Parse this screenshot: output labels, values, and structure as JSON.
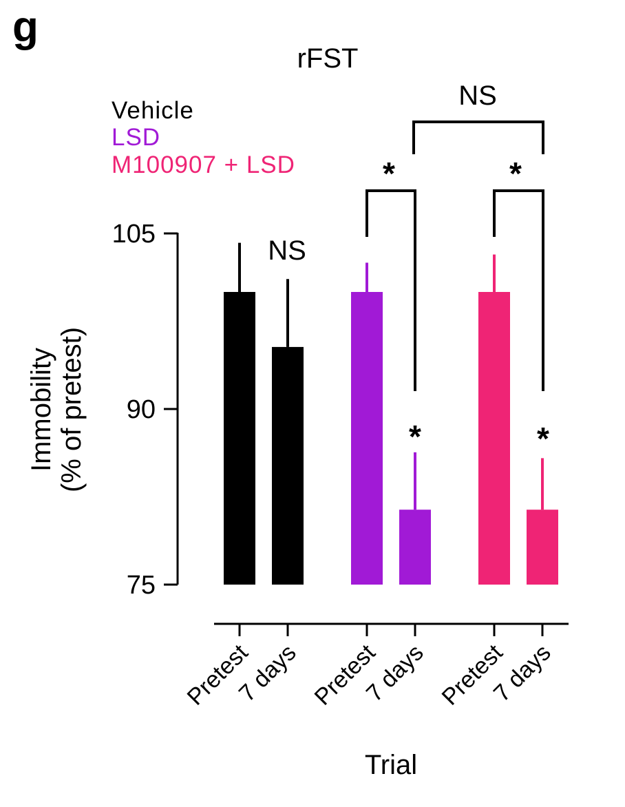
{
  "panel_label": "g",
  "chart_data": {
    "type": "bar",
    "title": "rFST",
    "ylabel": "Immobility\n(% of pretest)",
    "ylabel_lines": [
      "Immobility",
      "(% of pretest)"
    ],
    "xlabel": "Trial",
    "ylim": [
      75,
      105
    ],
    "yticks": [
      "75",
      "90",
      "105"
    ],
    "categories": [
      "Pretest",
      "7 days"
    ],
    "legend_placement": "top-left",
    "series": [
      {
        "name": "Vehicle",
        "color": "#000000",
        "values": [
          100,
          95.3
        ],
        "errors": [
          4.2,
          5.8
        ]
      },
      {
        "name": "LSD",
        "color": "#a11ad6",
        "values": [
          100,
          81.4
        ],
        "errors": [
          2.5,
          4.9
        ]
      },
      {
        "name": "M100907 + LSD",
        "color": "#ef2475",
        "values": [
          100,
          81.4
        ],
        "errors": [
          3.2,
          4.4
        ]
      }
    ],
    "annotations": {
      "vehicle_comparison": "NS",
      "lsd_comparison": "*",
      "combo_comparison": "*",
      "lsd_7days_marker": "*",
      "combo_7days_marker": "*",
      "between_groups": "NS"
    }
  }
}
